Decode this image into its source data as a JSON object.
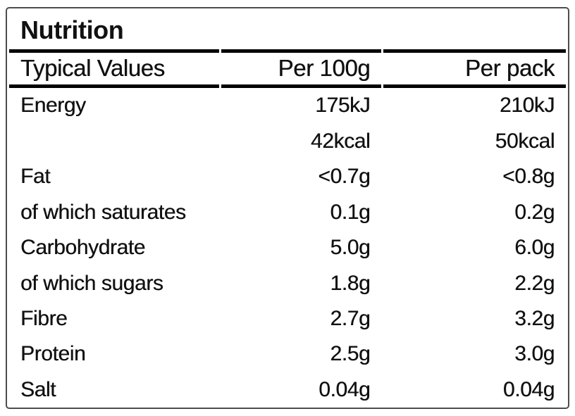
{
  "label": {
    "title": "Nutrition",
    "columns": {
      "name": "Typical Values",
      "per_100g": "Per 100g",
      "per_pack": "Per pack"
    },
    "rows": [
      {
        "name": "Energy",
        "per_100g": "175kJ",
        "per_pack": "210kJ"
      },
      {
        "name": "",
        "per_100g": "42kcal",
        "per_pack": "50kcal"
      },
      {
        "name": "Fat",
        "per_100g": "<0.7g",
        "per_pack": "<0.8g"
      },
      {
        "name": "of which saturates",
        "per_100g": "0.1g",
        "per_pack": "0.2g"
      },
      {
        "name": "Carbohydrate",
        "per_100g": "5.0g",
        "per_pack": "6.0g"
      },
      {
        "name": "of which sugars",
        "per_100g": "1.8g",
        "per_pack": "2.2g"
      },
      {
        "name": "Fibre",
        "per_100g": "2.7g",
        "per_pack": "3.2g"
      },
      {
        "name": "Protein",
        "per_100g": "2.5g",
        "per_pack": "3.0g"
      },
      {
        "name": "Salt",
        "per_100g": "0.04g",
        "per_pack": "0.04g"
      }
    ],
    "colors": {
      "text": "#111111",
      "rule": "#000000",
      "outer_border": "#4d4d4d",
      "background": "#ffffff"
    }
  }
}
